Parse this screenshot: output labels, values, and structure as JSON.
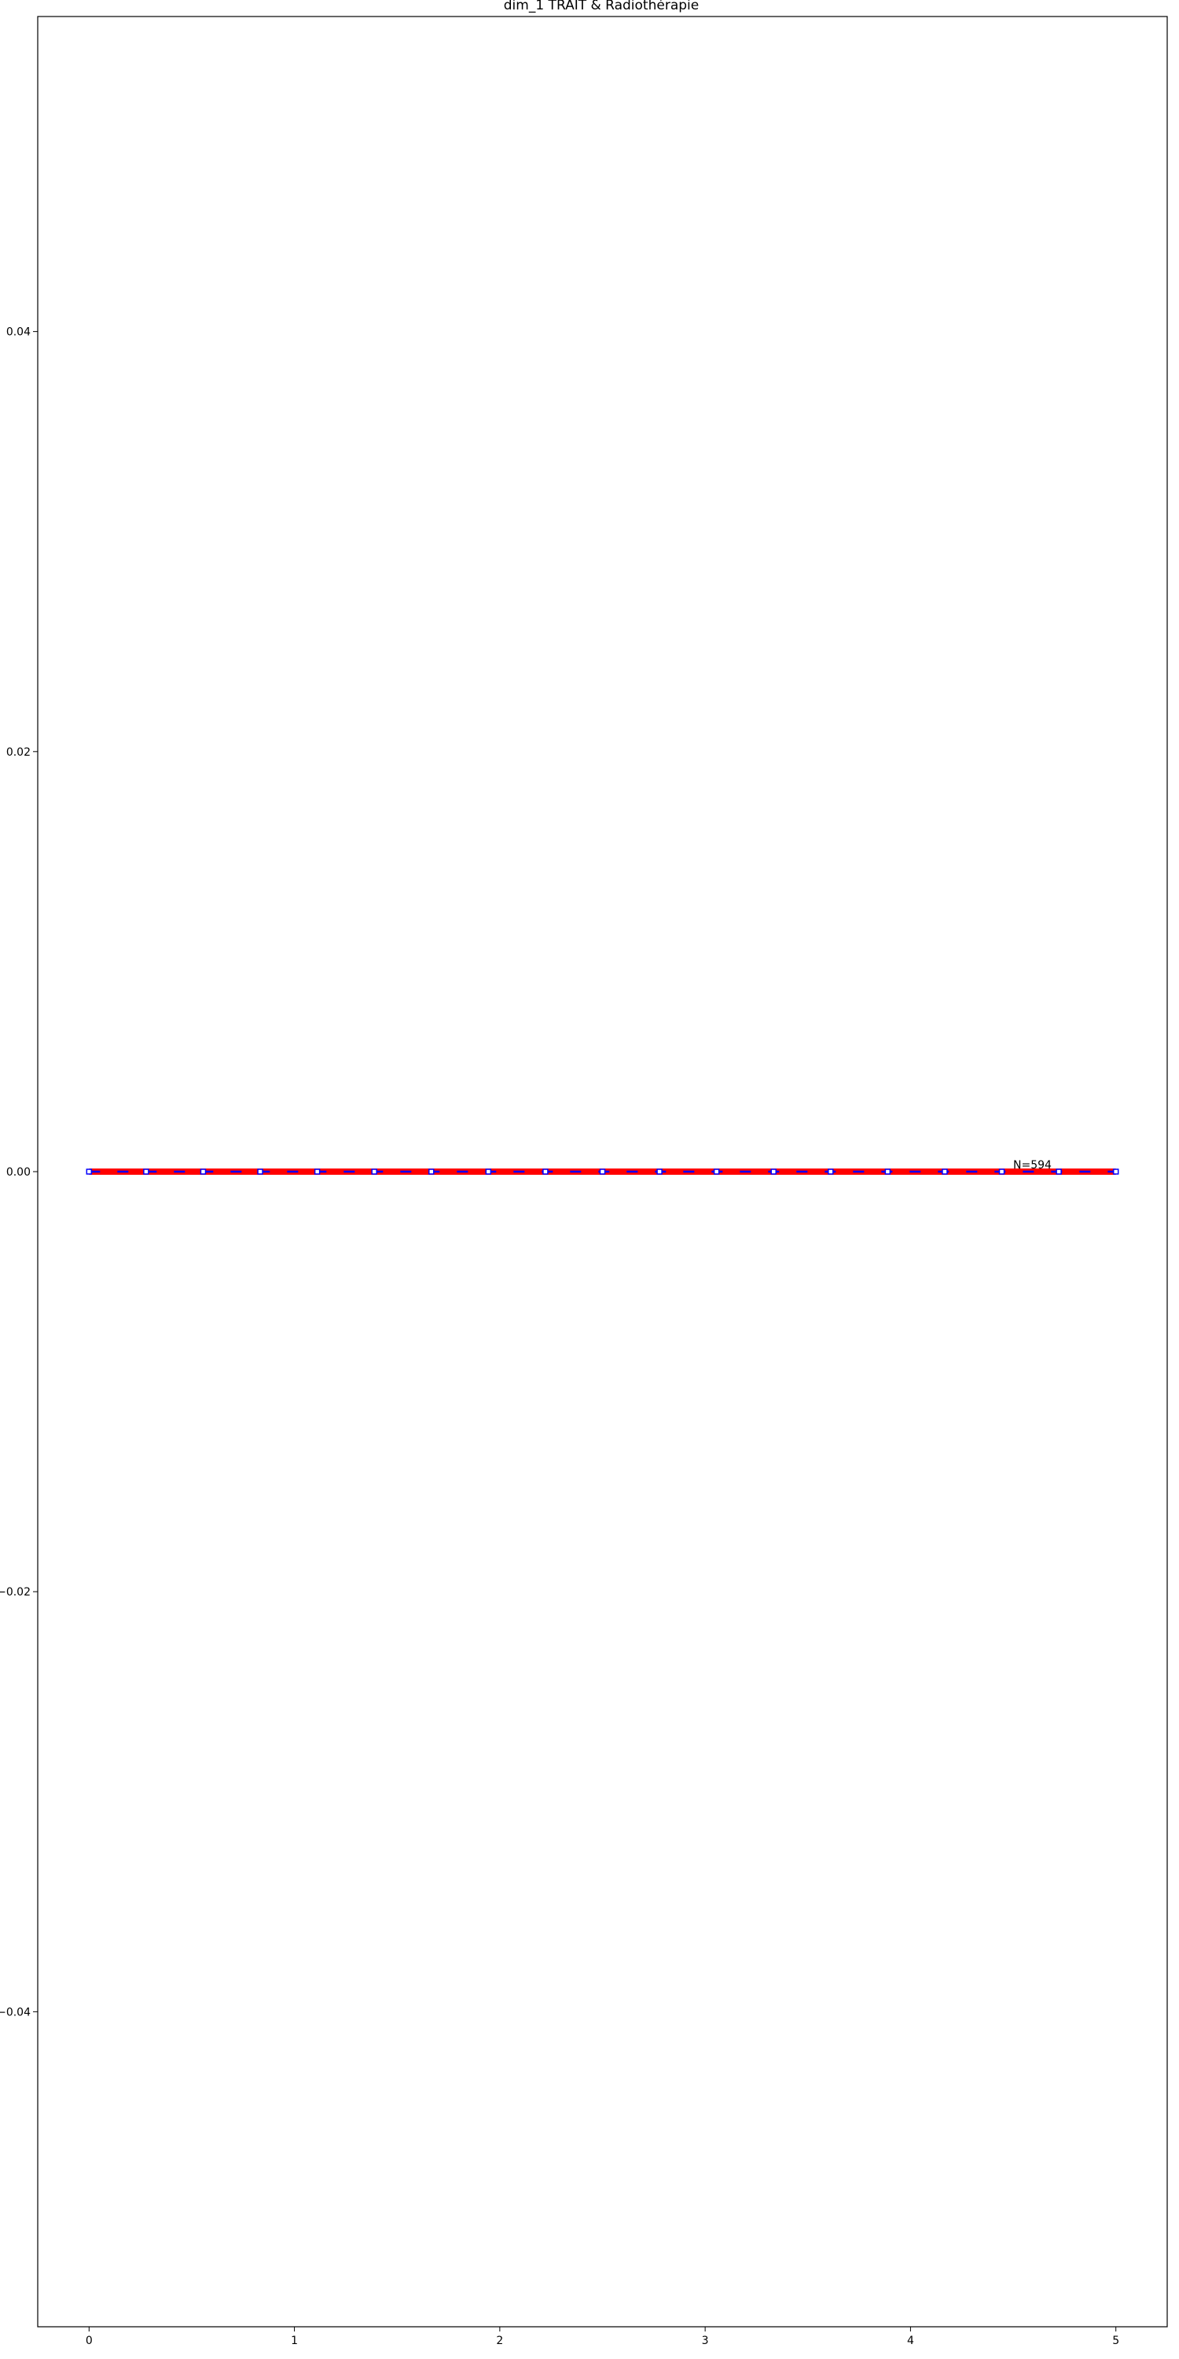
{
  "chart_data": {
    "type": "line",
    "title": "dim_1 TRAIT & Radiothérapie",
    "xlabel": "",
    "ylabel": "",
    "xlim": [
      -0.25,
      5.25
    ],
    "ylim": [
      -0.055,
      0.055
    ],
    "grid": false,
    "x_ticks": [
      "0",
      "1",
      "2",
      "3",
      "4",
      "5"
    ],
    "y_ticks": [
      "0.04",
      "0.02",
      "0.00",
      "−0.02",
      "−0.04"
    ],
    "series": [
      {
        "color": "#ff0000",
        "style": "solid-thick",
        "x": [
          0,
          5
        ],
        "y": [
          0.0,
          0.0
        ]
      },
      {
        "color": "#0000ff",
        "style": "dashed-markers",
        "x": [
          0,
          5
        ],
        "y": [
          0.0,
          0.0
        ]
      }
    ],
    "annotations": [
      {
        "text": "N=594",
        "x": 4.5,
        "y": 0.0
      }
    ]
  }
}
